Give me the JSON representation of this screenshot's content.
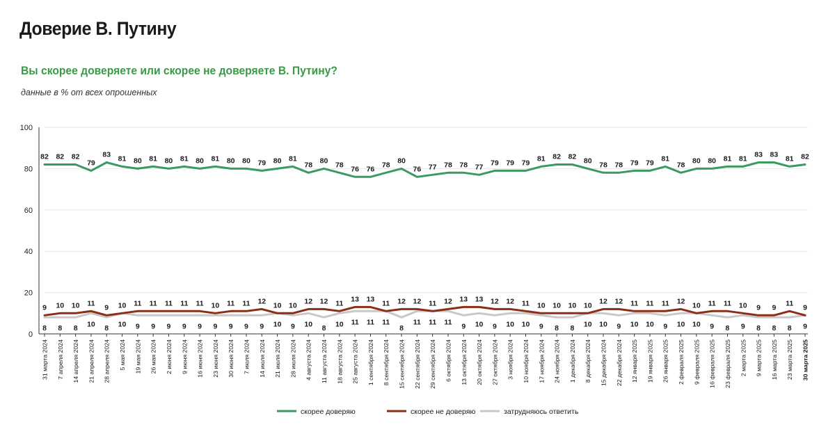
{
  "title": "Доверие В. Путину",
  "question": "Вы скорее доверяете или скорее не доверяете В. Путину?",
  "note": "данные в % от всех опрошенных",
  "colors": {
    "trust": "#3a9a5f",
    "distrust": "#8b2e16",
    "undecided": "#c8c8c8",
    "title_green": "#3a9a48",
    "grid": "#e6e6e6",
    "axis": "#333333"
  },
  "chart_data": {
    "type": "line",
    "title": "Вы скорее доверяете или скорее не доверяете В. Путину?",
    "subtitle": "данные в % от всех опрошенных",
    "ylim": [
      0,
      100
    ],
    "yticks": [
      0,
      20,
      40,
      60,
      80,
      100
    ],
    "grid": true,
    "legend_position": "bottom-center",
    "highlight_last_category": true,
    "categories": [
      "31 марта 2024",
      "7 апреля 2024",
      "14 апреля 2024",
      "21 апреля 2024",
      "28 апреля 2024",
      "5 мая 2024",
      "19 мая 2024",
      "26 мая 2024",
      "2 июня 2024",
      "9 июня 2024",
      "16 июня 2024",
      "23 июня 2024",
      "30 июня 2024",
      "7 июля 2024",
      "14 июля 2024",
      "21 июля 2024",
      "28 июля 2024",
      "4 августа 2024",
      "11 августа 2024",
      "18 августа 2024",
      "25 августа 2024",
      "1 сентября 2024",
      "8 сентября 2024",
      "15 сентября 2024",
      "22 сентября 2024",
      "29 сентября 2024",
      "6 октября 2024",
      "13 октября 2024",
      "20 октября 2024",
      "27 октября 2024",
      "3 ноября 2024",
      "10 ноября 2024",
      "17 ноября 2024",
      "24 ноября 2024",
      "1 декабря 2024",
      "8 декабря 2024",
      "15 декабря 2024",
      "22 декабря 2024",
      "12 января 2025",
      "19 января 2025",
      "26 января 2025",
      "2 февраля 2025",
      "9 февраля 2025",
      "16 февраля 2025",
      "23 февраля 2025",
      "2 марта 2025",
      "9 марта 2025",
      "16 марта 2025",
      "23 марта 2025",
      "30 марта 2025"
    ],
    "series": [
      {
        "name": "скорее доверяю",
        "color_key": "trust",
        "label_position": "above",
        "values": [
          82,
          82,
          82,
          79,
          83,
          81,
          80,
          81,
          80,
          81,
          80,
          81,
          80,
          80,
          79,
          80,
          81,
          78,
          80,
          78,
          76,
          76,
          78,
          80,
          76,
          77,
          78,
          78,
          77,
          79,
          79,
          79,
          81,
          82,
          82,
          80,
          78,
          78,
          79,
          79,
          81,
          78,
          80,
          80,
          81,
          81,
          83,
          83,
          81,
          82
        ]
      },
      {
        "name": "скорее не доверяю",
        "color_key": "distrust",
        "label_position": "above",
        "values": [
          9,
          10,
          10,
          11,
          9,
          10,
          11,
          11,
          11,
          11,
          11,
          10,
          11,
          11,
          12,
          10,
          10,
          12,
          12,
          11,
          13,
          13,
          11,
          12,
          12,
          11,
          12,
          13,
          13,
          12,
          12,
          11,
          10,
          10,
          10,
          10,
          12,
          12,
          11,
          11,
          11,
          12,
          10,
          11,
          11,
          10,
          9,
          9,
          11,
          9
        ]
      },
      {
        "name": "затрудняюсь ответить",
        "color_key": "undecided",
        "label_position": "below",
        "values": [
          8,
          8,
          8,
          10,
          8,
          10,
          9,
          9,
          9,
          9,
          9,
          9,
          9,
          9,
          9,
          10,
          9,
          10,
          8,
          10,
          11,
          11,
          11,
          8,
          11,
          11,
          11,
          9,
          10,
          9,
          10,
          10,
          9,
          8,
          8,
          10,
          10,
          9,
          10,
          10,
          9,
          10,
          10,
          9,
          8,
          9,
          8,
          8,
          8,
          9
        ]
      }
    ]
  }
}
